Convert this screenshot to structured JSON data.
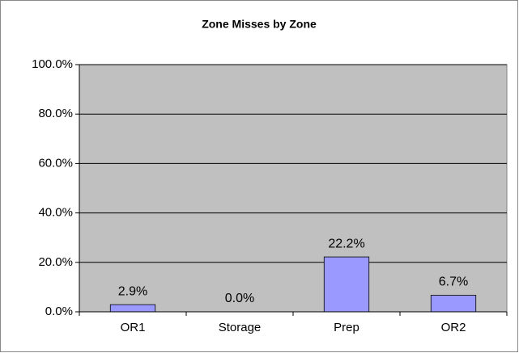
{
  "chart_data": {
    "type": "bar",
    "title": "Zone Misses by Zone",
    "categories": [
      "OR1",
      "Storage",
      "Prep",
      "OR2"
    ],
    "values": [
      2.9,
      0,
      22.2,
      6.7
    ],
    "value_labels": [
      "2.9%",
      "0.0%",
      "22.2%",
      "6.7%"
    ],
    "color": "#9999ff",
    "ylim": [
      0,
      100
    ],
    "yticks": [
      {
        "value": 0,
        "label": "0.0%"
      },
      {
        "value": 20,
        "label": "20.0%"
      },
      {
        "value": 40,
        "label": "40.0%"
      },
      {
        "value": 60,
        "label": "60.0%"
      },
      {
        "value": 80,
        "label": "80.0%"
      },
      {
        "value": 100,
        "label": "100.0%"
      }
    ],
    "grid": true
  }
}
